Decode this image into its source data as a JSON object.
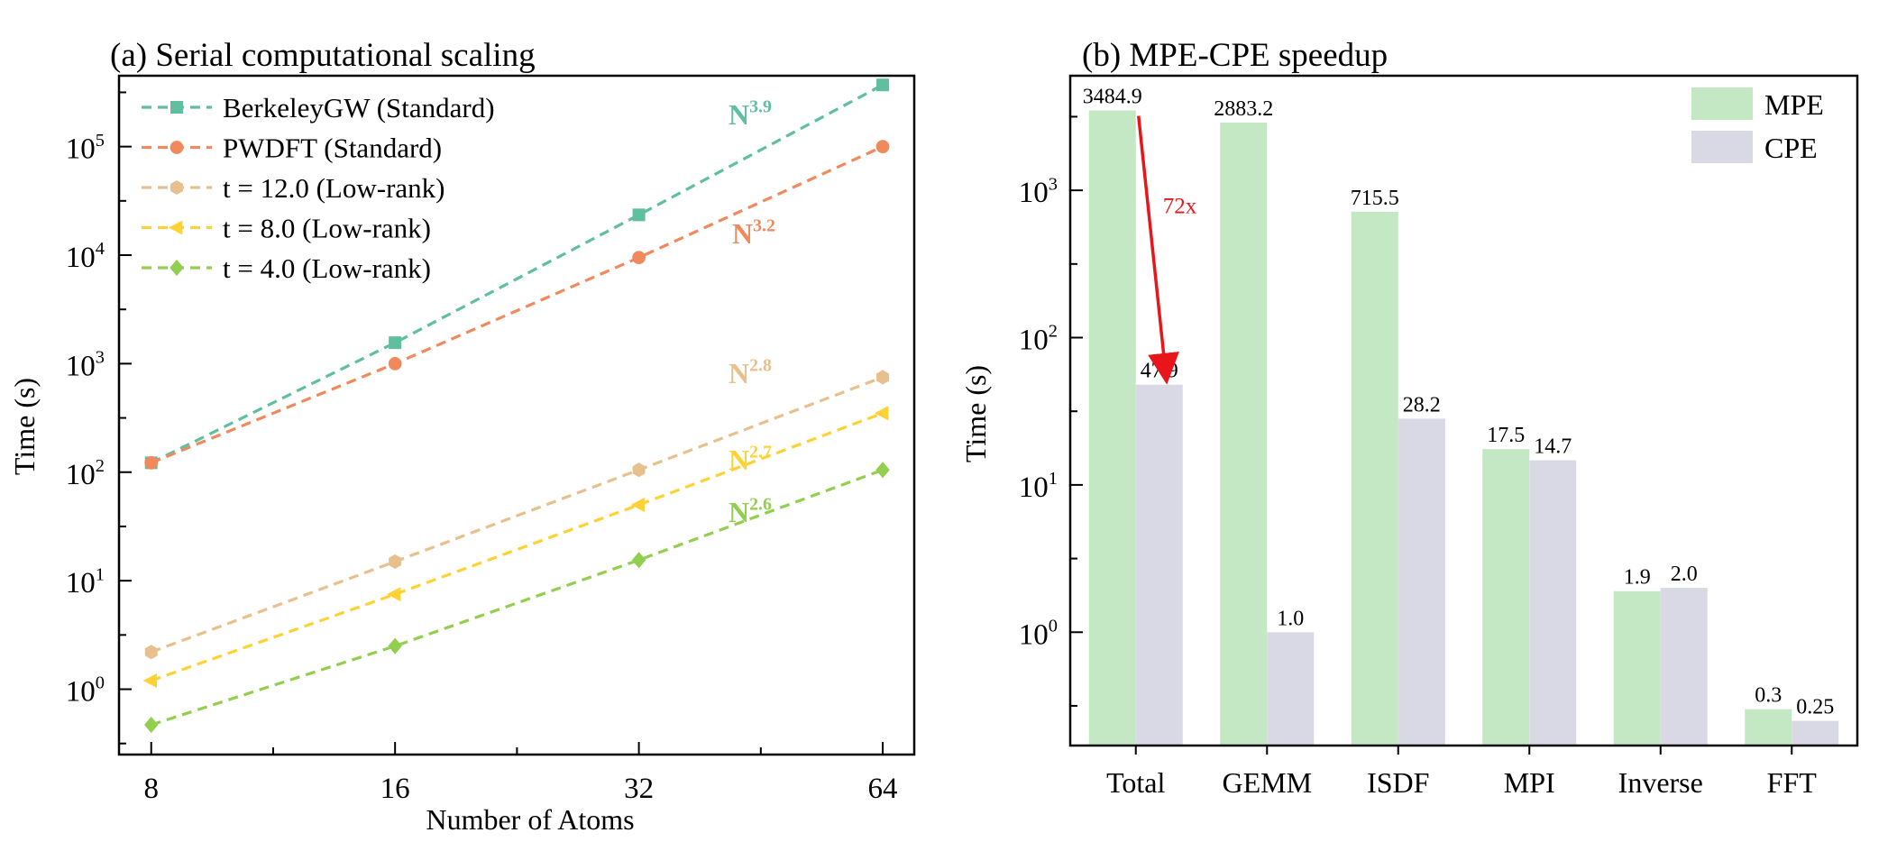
{
  "chart_data": [
    {
      "type": "line",
      "title": "(a) Serial computational scaling",
      "xlabel": "Number of Atoms",
      "ylabel": "Time (s)",
      "x_scale": "log2",
      "y_scale": "log",
      "xlim": [
        7.3,
        70
      ],
      "ylim": [
        0.25,
        450000
      ],
      "x": [
        8,
        16,
        32,
        64
      ],
      "x_tick_labels": [
        "8",
        "16",
        "32",
        "64"
      ],
      "y_ticks": [
        1,
        10,
        100,
        1000,
        10000,
        100000
      ],
      "y_tick_labels": [
        {
          "base": "10",
          "exp": "0"
        },
        {
          "base": "10",
          "exp": "1"
        },
        {
          "base": "10",
          "exp": "2"
        },
        {
          "base": "10",
          "exp": "3"
        },
        {
          "base": "10",
          "exp": "4"
        },
        {
          "base": "10",
          "exp": "5"
        }
      ],
      "legend": "top-left",
      "grid": false,
      "series": [
        {
          "name": "BerkeleyGW (Standard)",
          "values": [
            122,
            1560,
            23500,
            370000
          ],
          "color": "#5fbf9f",
          "marker": "square",
          "slope_base": "N",
          "slope_exp": "3.9"
        },
        {
          "name": "PWDFT (Standard)",
          "values": [
            122,
            1000,
            9500,
            100000
          ],
          "color": "#f08a5d",
          "marker": "circle",
          "slope_base": "N",
          "slope_exp": "3.2"
        },
        {
          "name": "t = 12.0 (Low-rank)",
          "values": [
            2.2,
            15,
            105,
            750
          ],
          "color": "#e7c08d",
          "marker": "hexagon",
          "slope_base": "N",
          "slope_exp": "2.8"
        },
        {
          "name": "t = 8.0 (Low-rank)",
          "values": [
            1.2,
            7.5,
            50,
            350
          ],
          "color": "#ffd233",
          "marker": "triangle-left",
          "slope_base": "N",
          "slope_exp": "2.7"
        },
        {
          "name": "t = 4.0 (Low-rank)",
          "values": [
            0.47,
            2.5,
            15.5,
            105
          ],
          "color": "#92cf4f",
          "marker": "diamond",
          "slope_base": "N",
          "slope_exp": "2.6"
        }
      ]
    },
    {
      "type": "bar",
      "title": "(b) MPE-CPE speedup",
      "xlabel": "",
      "ylabel": "Time (s)",
      "y_scale": "log",
      "ylim": [
        0.17,
        6000
      ],
      "categories": [
        "Total",
        "GEMM",
        "ISDF",
        "MPI",
        "Inverse",
        "FFT"
      ],
      "y_ticks": [
        1,
        10,
        100,
        1000
      ],
      "y_tick_labels": [
        {
          "base": "10",
          "exp": "0"
        },
        {
          "base": "10",
          "exp": "1"
        },
        {
          "base": "10",
          "exp": "2"
        },
        {
          "base": "10",
          "exp": "3"
        }
      ],
      "legend": "top-right",
      "grid": false,
      "series": [
        {
          "name": "MPE",
          "color": "#c4e8c4",
          "values": [
            3484.9,
            2883.2,
            715.5,
            17.5,
            1.9,
            0.3
          ],
          "labels": [
            "3484.9",
            "2883.2",
            "715.5",
            "17.5",
            "1.9",
            "0.3"
          ]
        },
        {
          "name": "CPE",
          "color": "#d9d9e6",
          "values": [
            47.9,
            1.0,
            28.2,
            14.7,
            2.0,
            0.25
          ],
          "labels": [
            "47.9",
            "1.0",
            "28.2",
            "14.7",
            "2.0",
            "0.25"
          ]
        }
      ],
      "annotation": {
        "text": "72x",
        "color": "#e8161b",
        "from_value": 3484.9,
        "to_value": 47.9,
        "category": "Total"
      }
    }
  ]
}
